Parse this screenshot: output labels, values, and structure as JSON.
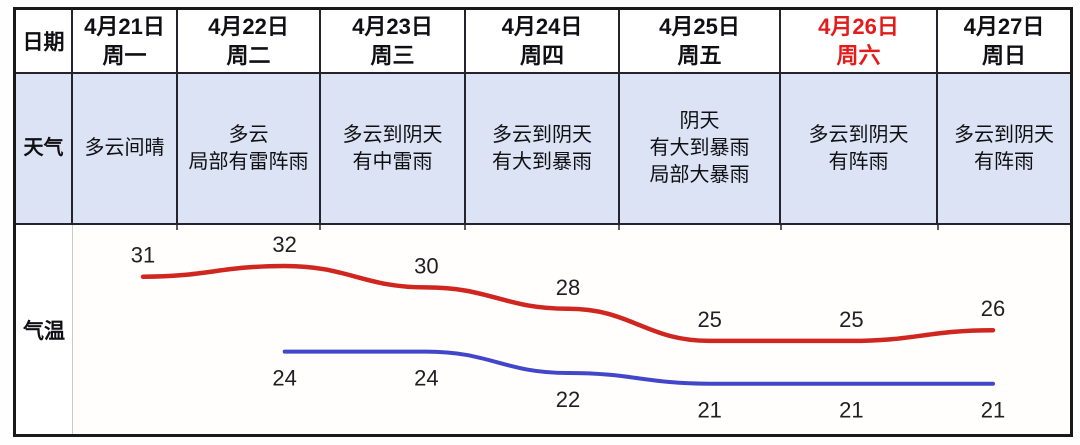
{
  "table": {
    "row_labels": {
      "date": "日期",
      "weather": "天气",
      "temperature": "气温"
    },
    "columns": [
      {
        "date": "4月21日",
        "weekday": "周一",
        "highlighted": false,
        "weather_lines": [
          "多云间晴",
          "",
          ""
        ]
      },
      {
        "date": "4月22日",
        "weekday": "周二",
        "highlighted": false,
        "weather_lines": [
          "多云",
          "局部有雷阵雨",
          ""
        ]
      },
      {
        "date": "4月23日",
        "weekday": "周三",
        "highlighted": false,
        "weather_lines": [
          "多云到阴天",
          "有中雷雨",
          ""
        ]
      },
      {
        "date": "4月24日",
        "weekday": "周四",
        "highlighted": false,
        "weather_lines": [
          "多云到阴天",
          "有大到暴雨",
          ""
        ]
      },
      {
        "date": "4月25日",
        "weekday": "周五",
        "highlighted": false,
        "weather_lines": [
          "阴天",
          "有大到暴雨",
          "局部大暴雨"
        ]
      },
      {
        "date": "4月26日",
        "weekday": "周六",
        "highlighted": true,
        "weather_lines": [
          "多云到阴天",
          "有阵雨",
          ""
        ]
      },
      {
        "date": "4月27日",
        "weekday": "周日",
        "highlighted": false,
        "weather_lines": [
          "多云到阴天",
          "有阵雨",
          ""
        ]
      }
    ]
  },
  "chart_data": {
    "type": "line",
    "categories": [
      "4月21日",
      "4月22日",
      "4月23日",
      "4月24日",
      "4月25日",
      "4月26日",
      "4月27日"
    ],
    "series": [
      {
        "name": "high-temperature",
        "color": "#d02620",
        "values": [
          31,
          32,
          30,
          28,
          25,
          25,
          26
        ]
      },
      {
        "name": "low-temperature",
        "color": "#4246c8",
        "values": [
          null,
          24,
          24,
          22,
          21,
          21,
          21
        ]
      }
    ],
    "title": "",
    "xlabel": "",
    "ylabel": "气温",
    "unit": "°C",
    "grid": false,
    "legend": "none"
  },
  "colors": {
    "highlight_date": "#e31b1b",
    "weather_row_bg": "#dbe3f4",
    "table_border": "#23242e",
    "high_line": "#d02620",
    "low_line": "#4246c8"
  }
}
